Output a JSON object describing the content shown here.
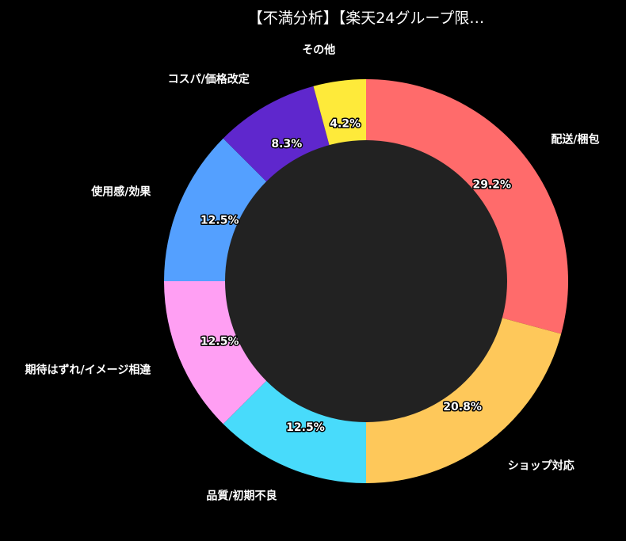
{
  "chart_data": {
    "type": "pie",
    "variant": "donut",
    "title": "【不満分析】【楽天24グループ限…",
    "categories": [
      "配送/梱包",
      "ショップ対応",
      "品質/初期不良",
      "期待はずれ/イメージ相違",
      "使用感/効果",
      "コスパ/価格改定",
      "その他"
    ],
    "values": [
      29.2,
      20.8,
      12.5,
      12.5,
      12.5,
      8.3,
      4.2
    ],
    "value_labels": [
      "29.2%",
      "20.8%",
      "12.5%",
      "12.5%",
      "12.5%",
      "8.3%",
      "4.2%"
    ],
    "colors": [
      "#ff6b6b",
      "#fec85a",
      "#48dbfb",
      "#ff9ff3",
      "#54a0ff",
      "#5f27cd",
      "#feea3a"
    ],
    "center_color": "#222222",
    "background": "#000000",
    "start_angle": "top",
    "direction": "clockwise",
    "legend": "none"
  }
}
